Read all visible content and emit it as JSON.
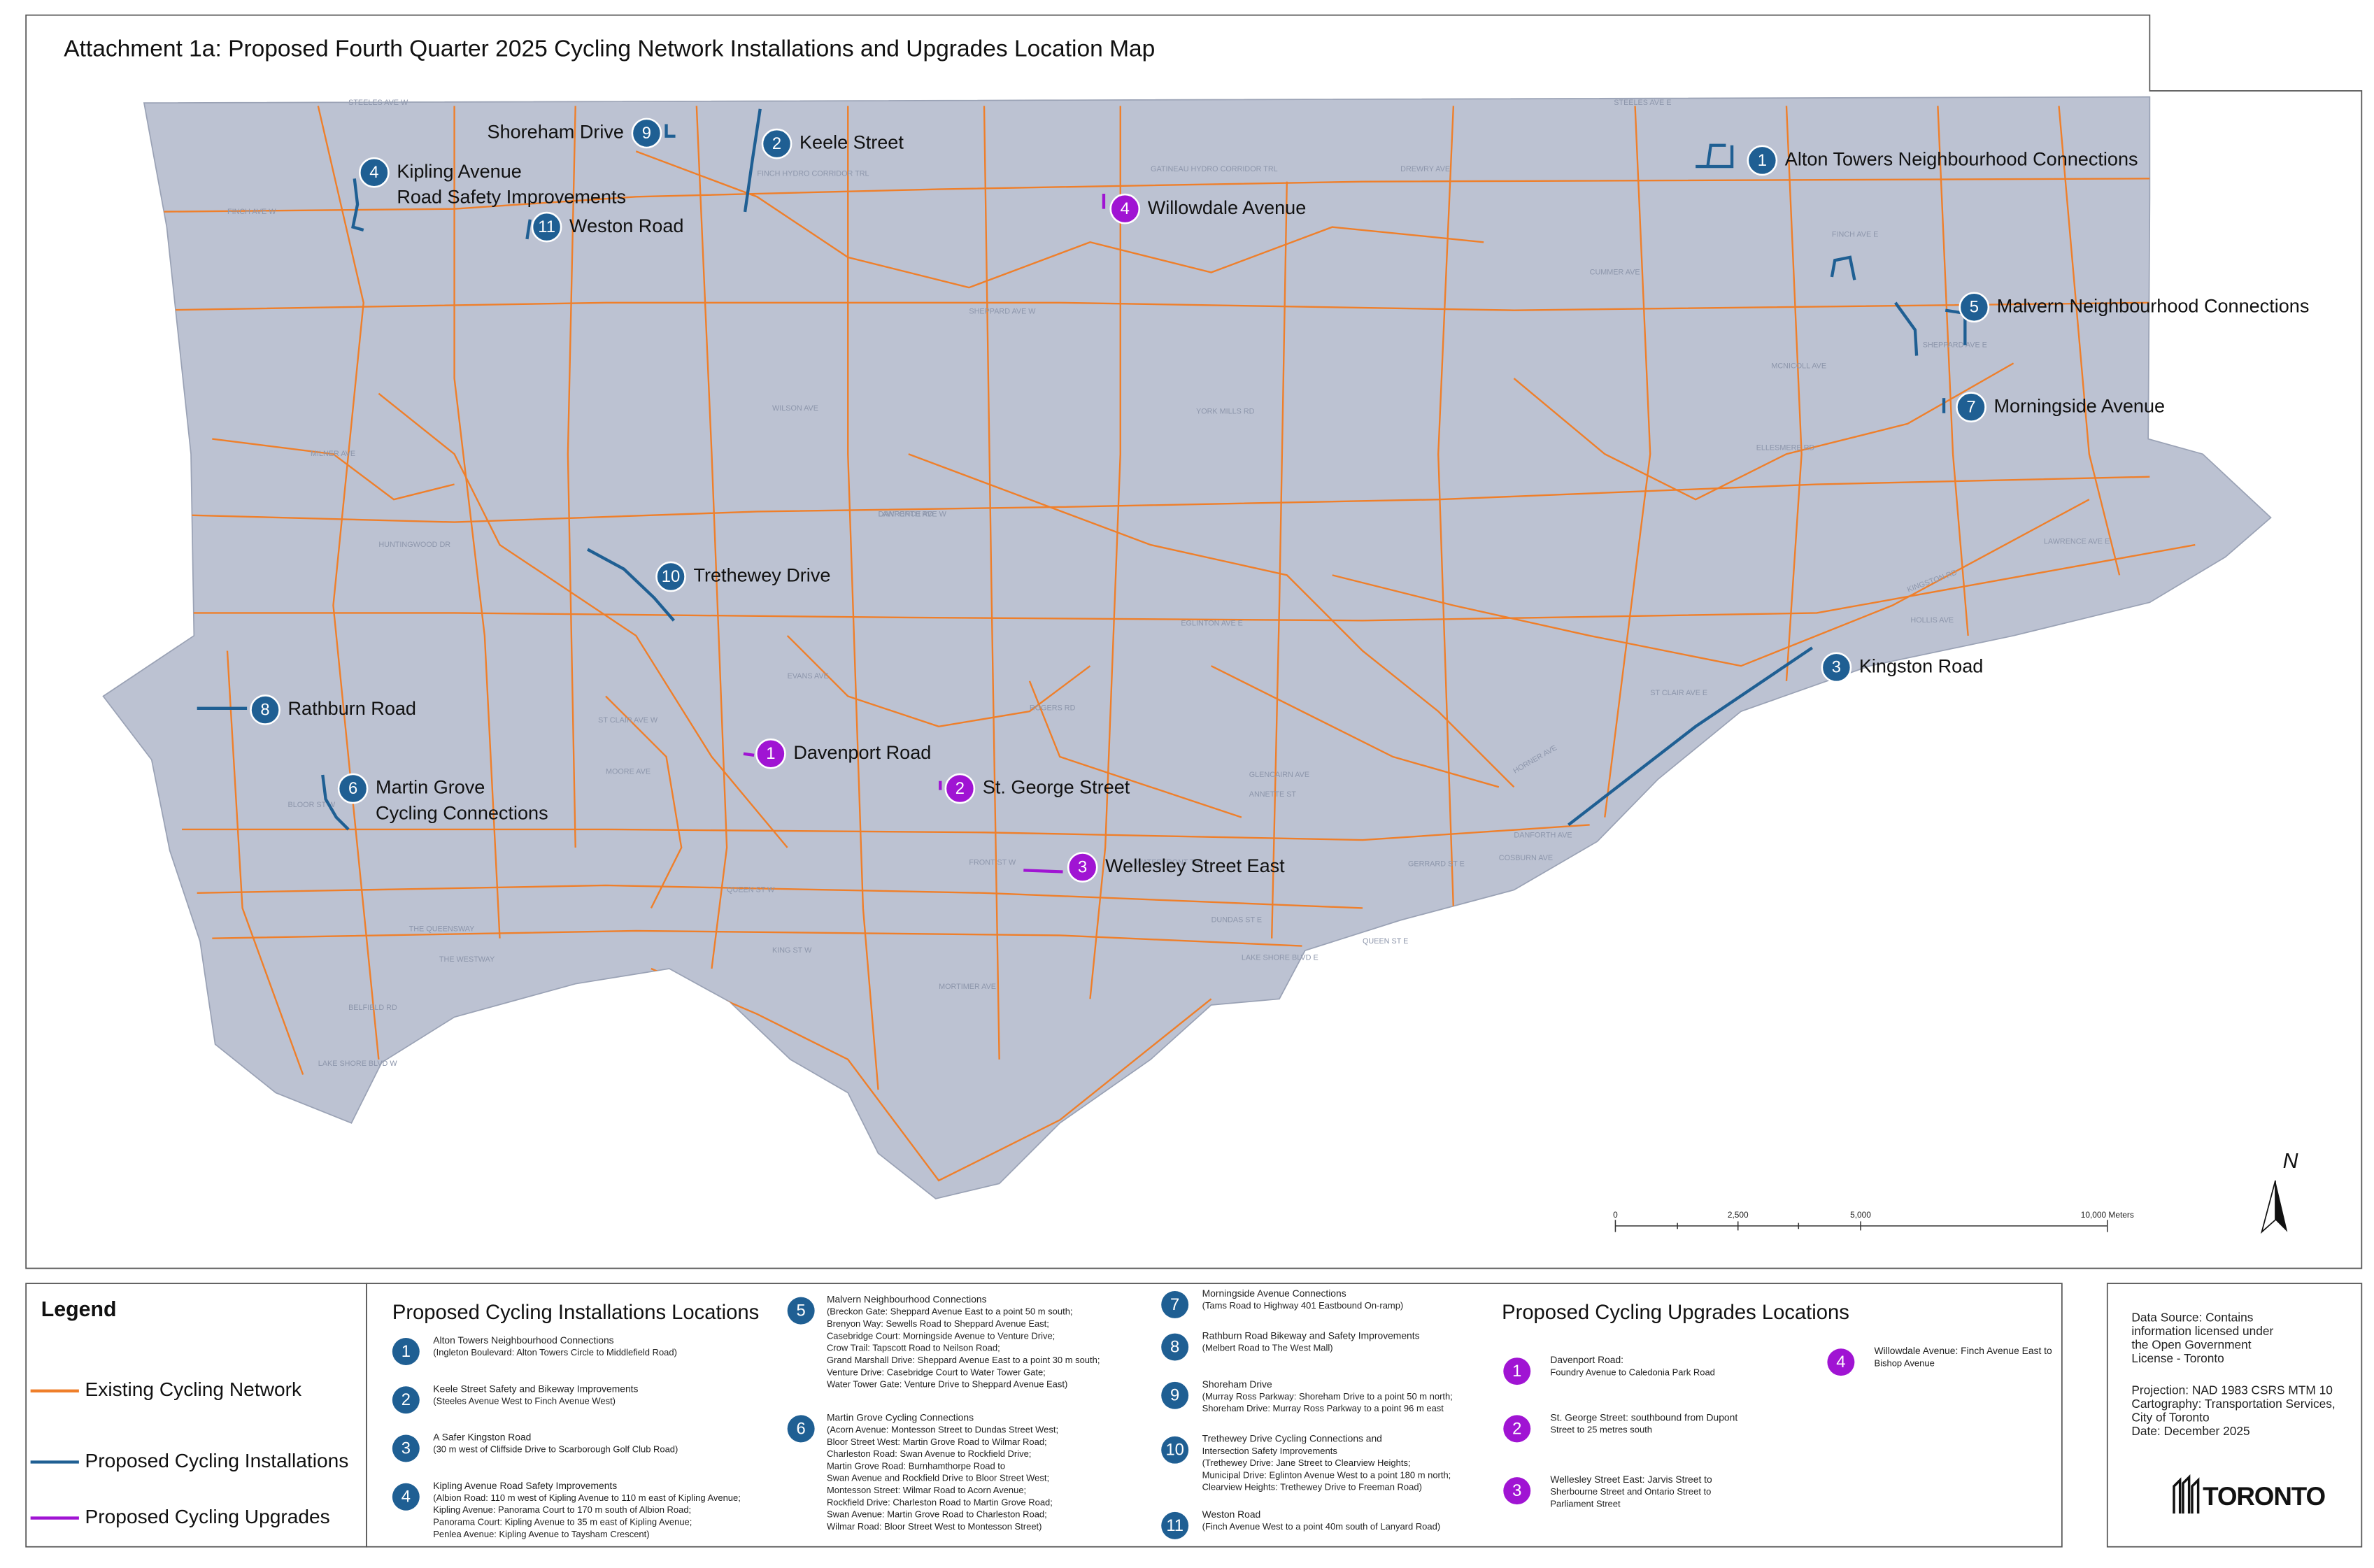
{
  "title": "Attachment 1a: Proposed Fourth Quarter 2025 Cycling Network Installations and Upgrades Location Map",
  "map": {
    "streets": [
      "STEELES AVE W",
      "STEELES AVE E",
      "FINCH AVE W",
      "FINCH AVE E",
      "SHEPPARD AVE W",
      "SHEPPARD AVE E",
      "WILSON AVE",
      "YORK MILLS RD",
      "LAWRENCE AVE W",
      "LAWRENCE AVE E",
      "ELLESMERE RD",
      "EGLINTON AVE E",
      "ST CLAIR AVE W",
      "ST CLAIR AVE E",
      "BLOOR ST W",
      "DANFORTH AVE",
      "QUEEN ST W",
      "QUEEN ST E",
      "KING ST W",
      "DUNDAS ST E",
      "GERRARD ST E",
      "THE QUEENSWAY",
      "LAKE SHORE BLVD W",
      "LAKE SHORE BLVD E",
      "KINGSTON RD",
      "FINCH HYDRO CORRIDOR TRL",
      "GATINEAU HYDRO CORRIDOR TRL",
      "DREWRY AVE",
      "CUMMER AVE",
      "MCNICOLL AVE",
      "HUNTINGWOOD DR",
      "MILNER AVE",
      "THE WESTWAY",
      "BELFIELD RD",
      "EVANS AVE",
      "HORNER AVE",
      "ROGERS RD",
      "DANFORTH RD",
      "MOORE AVE",
      "GLENCAIRN AVE",
      "ANNETTE ST",
      "COSBURN AVE",
      "MORTIMER AVE",
      "HOLLIS AVE",
      "FRONT ST W",
      "WATERFRONT TRL"
    ],
    "installations": [
      {
        "num": "1",
        "label": [
          "Alton Towers Neighbourhood Connections"
        ]
      },
      {
        "num": "2",
        "label": [
          "Keele Street"
        ]
      },
      {
        "num": "3",
        "label": [
          "Kingston Road"
        ]
      },
      {
        "num": "4",
        "label": [
          "Kipling Avenue",
          "Road Safety Improvements"
        ]
      },
      {
        "num": "5",
        "label": [
          "Malvern Neighbourhood Connections"
        ]
      },
      {
        "num": "6",
        "label": [
          "Martin Grove",
          "Cycling Connections"
        ]
      },
      {
        "num": "7",
        "label": [
          "Morningside Avenue"
        ]
      },
      {
        "num": "8",
        "label": [
          "Rathburn Road"
        ]
      },
      {
        "num": "9",
        "label": [
          "Shoreham Drive"
        ]
      },
      {
        "num": "10",
        "label": [
          "Trethewey Drive"
        ]
      },
      {
        "num": "11",
        "label": [
          "Weston Road"
        ]
      }
    ],
    "upgrades": [
      {
        "num": "1",
        "label": [
          "Davenport Road"
        ]
      },
      {
        "num": "2",
        "label": [
          "St. George Street"
        ]
      },
      {
        "num": "3",
        "label": [
          "Wellesley Street East"
        ]
      },
      {
        "num": "4",
        "label": [
          "Willowdale Avenue"
        ]
      }
    ],
    "scale_bar": [
      "0",
      "2,500",
      "5,000",
      "10,000 Meters"
    ],
    "north": "N"
  },
  "legend": {
    "title": "Legend",
    "items": [
      "Existing Cycling Network",
      "Proposed Cycling Installations",
      "Proposed Cycling Upgrades"
    ]
  },
  "installations_list": {
    "title": "Proposed Cycling Installations Locations",
    "items": [
      {
        "num": "1",
        "lines": [
          "Alton Towers Neighbourhood Connections",
          "(Ingleton Boulevard: Alton Towers Circle to Middlefield Road)"
        ]
      },
      {
        "num": "2",
        "lines": [
          "Keele Street Safety and Bikeway Improvements",
          "(Steeles Avenue West to Finch Avenue West)"
        ]
      },
      {
        "num": "3",
        "lines": [
          "A Safer Kingston Road",
          "(30 m west of Cliffside Drive to Scarborough Golf Club Road)"
        ]
      },
      {
        "num": "4",
        "lines": [
          "Kipling Avenue Road Safety Improvements",
          "(Albion Road: 110 m west of Kipling Avenue to 110 m east of Kipling Avenue;",
          "Kipling Avenue: Panorama Court to 170 m south of Albion Road;",
          "Panorama Court: Kipling Avenue to 35 m east of Kipling Avenue;",
          "Penlea Avenue: Kipling Avenue to Taysham Crescent)"
        ]
      },
      {
        "num": "5",
        "lines": [
          "Malvern Neighbourhood Connections",
          "(Breckon Gate: Sheppard Avenue East to a point 50 m south;",
          "Brenyon Way: Sewells Road to Sheppard Avenue East;",
          "Casebridge Court: Morningside Avenue to Venture Drive;",
          "Crow Trail: Tapscott Road to Neilson Road;",
          "Grand Marshall Drive: Sheppard Avenue East to a point 30 m south;",
          "Venture Drive: Casebridge Court to Water Tower Gate;",
          "Water Tower Gate: Venture Drive to Sheppard Avenue East)"
        ]
      },
      {
        "num": "6",
        "lines": [
          "Martin Grove Cycling Connections",
          "(Acorn Avenue: Montesson Street to Dundas Street West;",
          "Bloor Street West: Martin Grove Road to Wilmar Road;",
          "Charleston Road: Swan Avenue to Rockfield Drive;",
          "Martin Grove Road: Burnhamthorpe Road to",
          "Swan Avenue and Rockfield Drive to Bloor Street West;",
          "Montesson Street: Wilmar Road to Acorn Avenue;",
          "Rockfield Drive: Charleston Road to Martin Grove Road;",
          "Swan Avenue: Martin Grove Road to Charleston Road;",
          "Wilmar Road: Bloor Street West to Montesson Street)"
        ]
      },
      {
        "num": "7",
        "lines": [
          "Morningside Avenue Connections",
          "(Tams Road to Highway 401 Eastbound On-ramp)"
        ]
      },
      {
        "num": "8",
        "lines": [
          "Rathburn Road Bikeway and Safety Improvements",
          "(Melbert Road to The West Mall)"
        ]
      },
      {
        "num": "9",
        "lines": [
          "Shoreham Drive",
          "(Murray Ross Parkway: Shoreham Drive to a point 50 m north;",
          "Shoreham Drive: Murray Ross Parkway to a point 96 m east"
        ]
      },
      {
        "num": "10",
        "lines": [
          "Trethewey Drive Cycling Connections and",
          "Intersection Safety Improvements",
          "(Trethewey Drive: Jane Street to Clearview Heights;",
          "Municipal Drive: Eglinton Avenue West to a point 180 m north;",
          "Clearview Heights: Trethewey Drive to Freeman Road)"
        ]
      },
      {
        "num": "11",
        "lines": [
          "Weston Road",
          "(Finch Avenue West to a point 40m south of Lanyard Road)"
        ]
      }
    ]
  },
  "upgrades_list": {
    "title": "Proposed Cycling Upgrades Locations",
    "items": [
      {
        "num": "1",
        "lines": [
          "Davenport Road:",
          "Foundry Avenue to Caledonia Park Road"
        ]
      },
      {
        "num": "2",
        "lines": [
          "St. George Street: southbound from Dupont",
          "Street to 25 metres south"
        ]
      },
      {
        "num": "3",
        "lines": [
          "Wellesley Street East: Jarvis Street to",
          "Sherbourne Street and Ontario Street to",
          "Parliament Street"
        ]
      },
      {
        "num": "4",
        "lines": [
          "Willowdale Avenue: Finch Avenue East to",
          "Bishop Avenue"
        ]
      }
    ]
  },
  "source": {
    "lines": [
      "Data Source: Contains",
      "information licensed under",
      "the Open Government",
      "License - Toronto",
      "Projection: NAD 1983 CSRS MTM 10",
      "Cartography: Transportation Services,",
      "City of Toronto",
      "Date: December 2025"
    ]
  },
  "logo": "TORONTO"
}
